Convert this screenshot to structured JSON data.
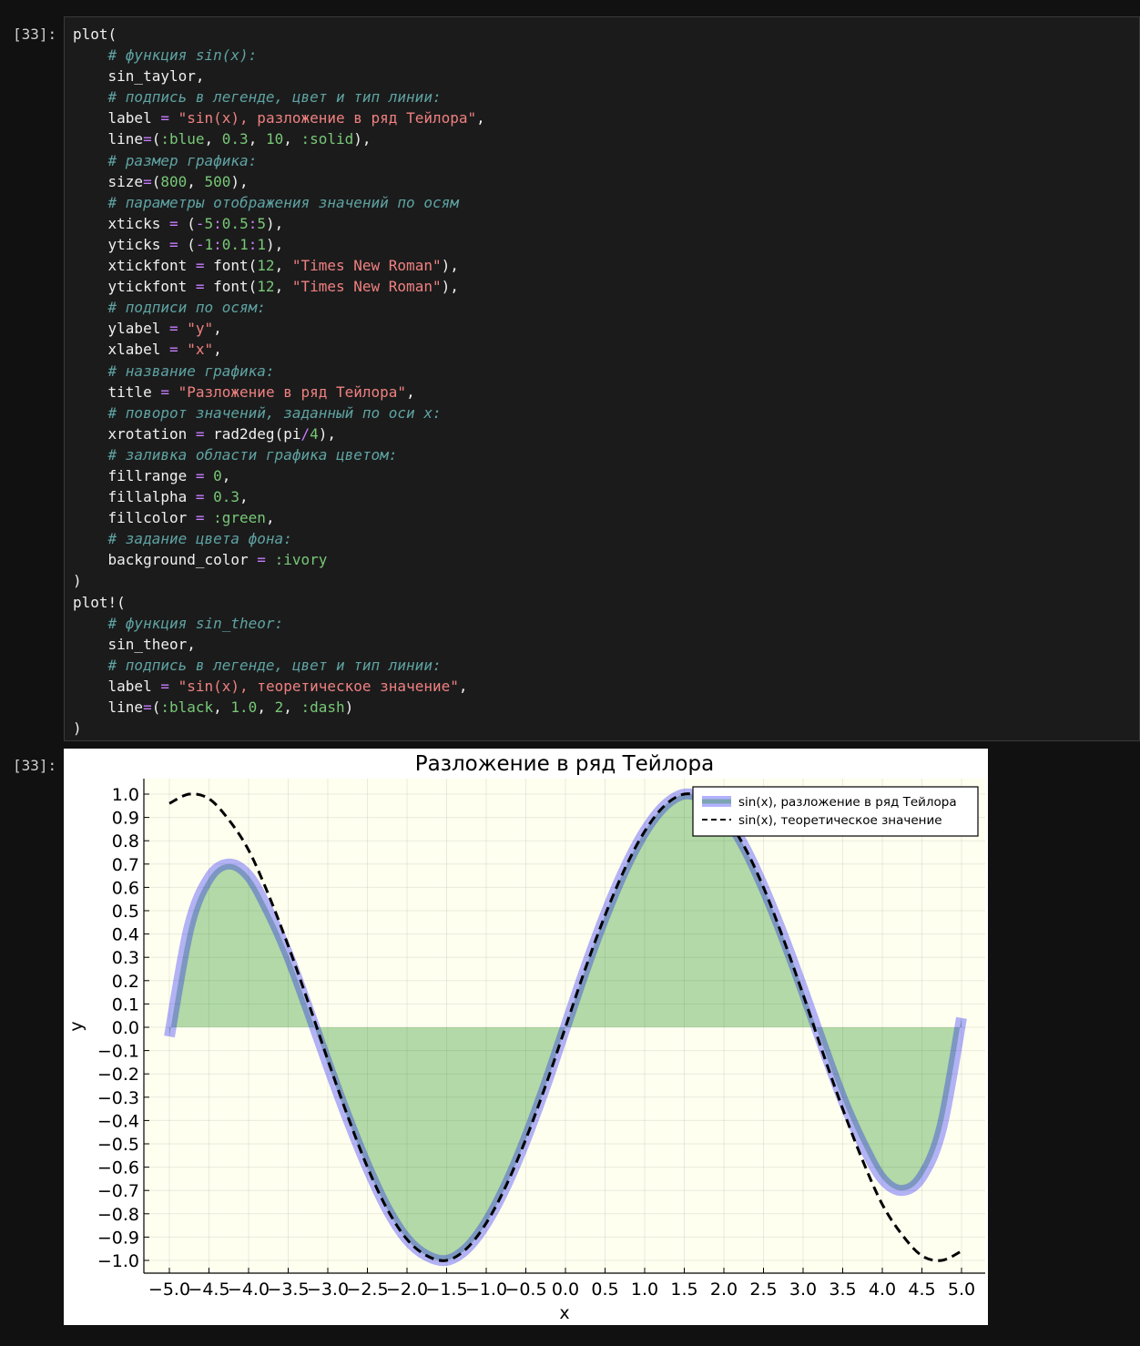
{
  "cells": {
    "input_prompt": "[33]:",
    "output_prompt": "[33]:"
  },
  "code_lines": [
    [
      {
        "t": "plot("
      }
    ],
    [
      {
        "t": "    "
      },
      {
        "t": "# функция sin(x):",
        "c": "cm"
      }
    ],
    [
      {
        "t": "    sin_taylor,"
      }
    ],
    [
      {
        "t": "    "
      },
      {
        "t": "# подпись в легенде, цвет и тип линии:",
        "c": "cm"
      }
    ],
    [
      {
        "t": "    label "
      },
      {
        "t": "=",
        "c": "op"
      },
      {
        "t": " "
      },
      {
        "t": "\"sin(x), разложение в ряд Тейлора\"",
        "c": "st"
      },
      {
        "t": ","
      }
    ],
    [
      {
        "t": "    line"
      },
      {
        "t": "=",
        "c": "op"
      },
      {
        "t": "("
      },
      {
        "t": ":blue",
        "c": "sy"
      },
      {
        "t": ", "
      },
      {
        "t": "0.3",
        "c": "nm"
      },
      {
        "t": ", "
      },
      {
        "t": "10",
        "c": "nm"
      },
      {
        "t": ", "
      },
      {
        "t": ":solid",
        "c": "sy"
      },
      {
        "t": "),"
      }
    ],
    [
      {
        "t": "    "
      },
      {
        "t": "# размер графика:",
        "c": "cm"
      }
    ],
    [
      {
        "t": "    size"
      },
      {
        "t": "=",
        "c": "op"
      },
      {
        "t": "("
      },
      {
        "t": "800",
        "c": "nm"
      },
      {
        "t": ", "
      },
      {
        "t": "500",
        "c": "nm"
      },
      {
        "t": "),"
      }
    ],
    [
      {
        "t": "    "
      },
      {
        "t": "# параметры отображения значений по осям",
        "c": "cm"
      }
    ],
    [
      {
        "t": "    xticks "
      },
      {
        "t": "=",
        "c": "op"
      },
      {
        "t": " ("
      },
      {
        "t": "-",
        "c": "op"
      },
      {
        "t": "5",
        "c": "nm"
      },
      {
        "t": ":",
        "c": "op"
      },
      {
        "t": "0.5",
        "c": "nm"
      },
      {
        "t": ":",
        "c": "op"
      },
      {
        "t": "5",
        "c": "nm"
      },
      {
        "t": "),"
      }
    ],
    [
      {
        "t": "    yticks "
      },
      {
        "t": "=",
        "c": "op"
      },
      {
        "t": " ("
      },
      {
        "t": "-",
        "c": "op"
      },
      {
        "t": "1",
        "c": "nm"
      },
      {
        "t": ":",
        "c": "op"
      },
      {
        "t": "0.1",
        "c": "nm"
      },
      {
        "t": ":",
        "c": "op"
      },
      {
        "t": "1",
        "c": "nm"
      },
      {
        "t": "),"
      }
    ],
    [
      {
        "t": "    xtickfont "
      },
      {
        "t": "=",
        "c": "op"
      },
      {
        "t": " font("
      },
      {
        "t": "12",
        "c": "nm"
      },
      {
        "t": ", "
      },
      {
        "t": "\"Times New Roman\"",
        "c": "st"
      },
      {
        "t": "),"
      }
    ],
    [
      {
        "t": "    ytickfont "
      },
      {
        "t": "=",
        "c": "op"
      },
      {
        "t": " font("
      },
      {
        "t": "12",
        "c": "nm"
      },
      {
        "t": ", "
      },
      {
        "t": "\"Times New Roman\"",
        "c": "st"
      },
      {
        "t": "),"
      }
    ],
    [
      {
        "t": "    "
      },
      {
        "t": "# подписи по осям:",
        "c": "cm"
      }
    ],
    [
      {
        "t": "    ylabel "
      },
      {
        "t": "=",
        "c": "op"
      },
      {
        "t": " "
      },
      {
        "t": "\"y\"",
        "c": "st"
      },
      {
        "t": ","
      }
    ],
    [
      {
        "t": "    xlabel "
      },
      {
        "t": "=",
        "c": "op"
      },
      {
        "t": " "
      },
      {
        "t": "\"x\"",
        "c": "st"
      },
      {
        "t": ","
      }
    ],
    [
      {
        "t": "    "
      },
      {
        "t": "# название графика:",
        "c": "cm"
      }
    ],
    [
      {
        "t": "    title "
      },
      {
        "t": "=",
        "c": "op"
      },
      {
        "t": " "
      },
      {
        "t": "\"Разложение в ряд Тейлора\"",
        "c": "st"
      },
      {
        "t": ","
      }
    ],
    [
      {
        "t": "    "
      },
      {
        "t": "# поворот значений, заданный по оси x:",
        "c": "cm"
      }
    ],
    [
      {
        "t": "    xrotation "
      },
      {
        "t": "=",
        "c": "op"
      },
      {
        "t": " rad2deg(pi"
      },
      {
        "t": "/",
        "c": "op"
      },
      {
        "t": "4",
        "c": "nm"
      },
      {
        "t": "),"
      }
    ],
    [
      {
        "t": "    "
      },
      {
        "t": "# заливка области графика цветом:",
        "c": "cm"
      }
    ],
    [
      {
        "t": "    fillrange "
      },
      {
        "t": "=",
        "c": "op"
      },
      {
        "t": " "
      },
      {
        "t": "0",
        "c": "nm"
      },
      {
        "t": ","
      }
    ],
    [
      {
        "t": "    fillalpha "
      },
      {
        "t": "=",
        "c": "op"
      },
      {
        "t": " "
      },
      {
        "t": "0.3",
        "c": "nm"
      },
      {
        "t": ","
      }
    ],
    [
      {
        "t": "    fillcolor "
      },
      {
        "t": "=",
        "c": "op"
      },
      {
        "t": " "
      },
      {
        "t": ":green",
        "c": "sy"
      },
      {
        "t": ","
      }
    ],
    [
      {
        "t": "    "
      },
      {
        "t": "# задание цвета фона:",
        "c": "cm"
      }
    ],
    [
      {
        "t": "    background_color "
      },
      {
        "t": "=",
        "c": "op"
      },
      {
        "t": " "
      },
      {
        "t": ":ivory",
        "c": "sy"
      }
    ],
    [
      {
        "t": ")"
      }
    ],
    [
      {
        "t": "plot!("
      }
    ],
    [
      {
        "t": "    "
      },
      {
        "t": "# функция sin_theor:",
        "c": "cm"
      }
    ],
    [
      {
        "t": "    sin_theor,"
      }
    ],
    [
      {
        "t": "    "
      },
      {
        "t": "# подпись в легенде, цвет и тип линии:",
        "c": "cm"
      }
    ],
    [
      {
        "t": "    label "
      },
      {
        "t": "=",
        "c": "op"
      },
      {
        "t": " "
      },
      {
        "t": "\"sin(x), теоретическое значение\"",
        "c": "st"
      },
      {
        "t": ","
      }
    ],
    [
      {
        "t": "    line"
      },
      {
        "t": "=",
        "c": "op"
      },
      {
        "t": "("
      },
      {
        "t": ":black",
        "c": "sy"
      },
      {
        "t": ", "
      },
      {
        "t": "1.0",
        "c": "nm"
      },
      {
        "t": ", "
      },
      {
        "t": "2",
        "c": "nm"
      },
      {
        "t": ", "
      },
      {
        "t": ":dash",
        "c": "sy"
      },
      {
        "t": ")"
      }
    ],
    [
      {
        "t": ")"
      }
    ]
  ],
  "colors": {
    "page_bg": "#111111",
    "cell_bg": "#1b1b1b",
    "plot_bg": "#fffff0",
    "taylor_line": "#0000ff",
    "fill": "#008000",
    "theor_line": "#000000"
  },
  "chart_data": {
    "type": "line",
    "title": "Разложение в ряд Тейлора",
    "xlabel": "x",
    "ylabel": "y",
    "xlim": [
      -5.0,
      5.0
    ],
    "ylim": [
      -1.0,
      1.0
    ],
    "xticks": [
      "−5.0",
      "−4.5",
      "−4.0",
      "−3.5",
      "−3.0",
      "−2.5",
      "−2.0",
      "−1.5",
      "−1.0",
      "−0.5",
      "0.0",
      "0.5",
      "1.0",
      "1.5",
      "2.0",
      "2.5",
      "3.0",
      "3.5",
      "4.0",
      "4.5",
      "5.0"
    ],
    "yticks": [
      "1.0",
      "0.9",
      "0.8",
      "0.7",
      "0.6",
      "0.5",
      "0.4",
      "0.3",
      "0.2",
      "0.1",
      "0.0",
      "−0.1",
      "−0.2",
      "−0.3",
      "−0.4",
      "−0.5",
      "−0.6",
      "−0.7",
      "−0.8",
      "−0.9",
      "−1.0"
    ],
    "grid": true,
    "legend_position": "top-right",
    "series": [
      {
        "name": "sin(x), разложение в ряд Тейлора",
        "style": "solid",
        "color": "#0000ff",
        "x": [
          -5.0,
          -4.75,
          -4.5,
          -4.25,
          -4.0,
          -3.75,
          -3.5,
          -3.25,
          -3.0,
          -2.75,
          -2.5,
          -2.25,
          -2.0,
          -1.75,
          -1.5,
          -1.25,
          -1.0,
          -0.75,
          -0.5,
          -0.25,
          0.0,
          0.25,
          0.5,
          0.75,
          1.0,
          1.25,
          1.5,
          1.75,
          2.0,
          2.25,
          2.5,
          2.75,
          3.0,
          3.25,
          3.5,
          3.75,
          4.0,
          4.25,
          4.5,
          4.75,
          5.0
        ],
        "y": [
          -0.04,
          0.43,
          0.64,
          0.7,
          0.65,
          0.5,
          0.31,
          0.08,
          -0.16,
          -0.39,
          -0.6,
          -0.78,
          -0.91,
          -0.98,
          -1.0,
          -0.95,
          -0.84,
          -0.68,
          -0.48,
          -0.25,
          0.0,
          0.25,
          0.48,
          0.68,
          0.84,
          0.95,
          1.0,
          0.98,
          0.91,
          0.78,
          0.6,
          0.39,
          0.16,
          -0.08,
          -0.31,
          -0.5,
          -0.65,
          -0.7,
          -0.64,
          -0.43,
          0.04
        ]
      },
      {
        "name": "sin(x), теоретическое значение",
        "style": "dash",
        "color": "#000000",
        "x": [
          -5.0,
          -4.75,
          -4.5,
          -4.25,
          -4.0,
          -3.75,
          -3.5,
          -3.25,
          -3.0,
          -2.75,
          -2.5,
          -2.25,
          -2.0,
          -1.75,
          -1.5,
          -1.25,
          -1.0,
          -0.75,
          -0.5,
          -0.25,
          0.0,
          0.25,
          0.5,
          0.75,
          1.0,
          1.25,
          1.5,
          1.75,
          2.0,
          2.25,
          2.5,
          2.75,
          3.0,
          3.25,
          3.5,
          3.75,
          4.0,
          4.25,
          4.5,
          4.75,
          5.0
        ],
        "y": [
          0.96,
          1.0,
          0.98,
          0.89,
          0.76,
          0.57,
          0.35,
          0.11,
          -0.14,
          -0.38,
          -0.6,
          -0.78,
          -0.91,
          -0.98,
          -1.0,
          -0.95,
          -0.84,
          -0.68,
          -0.48,
          -0.25,
          0.0,
          0.25,
          0.48,
          0.68,
          0.84,
          0.95,
          1.0,
          0.98,
          0.91,
          0.78,
          0.6,
          0.38,
          0.14,
          -0.11,
          -0.35,
          -0.57,
          -0.76,
          -0.89,
          -0.98,
          -1.0,
          -0.96
        ]
      }
    ]
  }
}
